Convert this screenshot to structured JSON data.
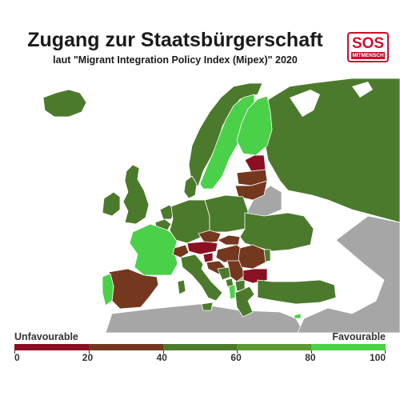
{
  "title": "Zugang zur Staatsbürgerschaft",
  "subtitle": "laut \"Migrant Integration Policy Index (Mipex)\" 2020",
  "logo": {
    "main": "SOS",
    "sub": "MITMENSCH"
  },
  "legend": {
    "low_label": "Unfavourable",
    "high_label": "Favourable",
    "ticks": [
      "0",
      "20",
      "40",
      "60",
      "80",
      "100"
    ],
    "colors": [
      "#8b1021",
      "#73381e",
      "#4c7a2c",
      "#5b9a33",
      "#4ad049"
    ]
  },
  "colors": {
    "no_data": "#a6a6a6",
    "water": "#ffffff",
    "border": "#ffffff"
  }
}
